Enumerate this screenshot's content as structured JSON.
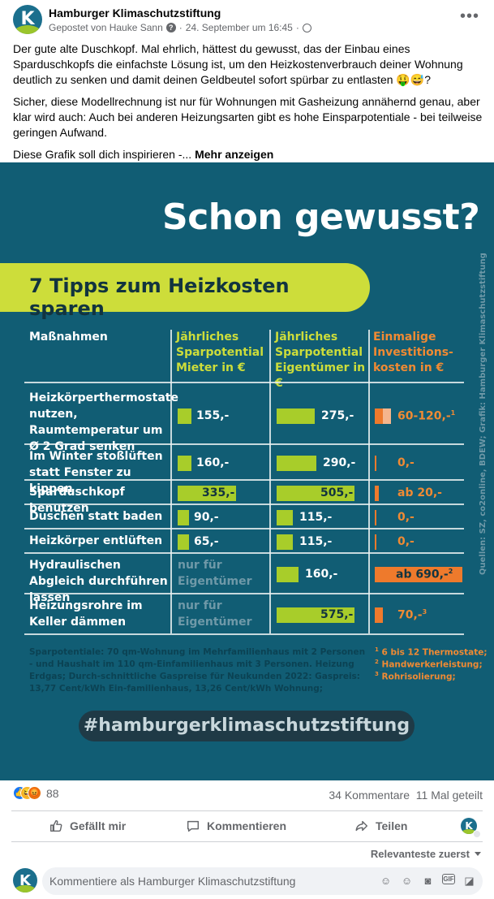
{
  "post": {
    "page_name": "Hamburger Klimaschutzstiftung",
    "posted_by": "Gepostet von Hauke Sann",
    "separator": "·",
    "date": "24. September um 16:45",
    "more_options": "•••",
    "paragraphs": [
      "Der gute alte Duschkopf. Mal ehrlich, hättest du gewusst, das der Einbau eines Sparduschkopfs die einfachste Lösung ist, um den Heizkostenverbrauch deiner Wohnung deutlich zu senken und damit deinen Geldbeutel sofort spürbar zu entlasten 🤑😅?",
      "Sicher, diese Modellrechnung ist nur für Wohnungen mit Gasheizung annähernd genau, aber klar wird auch: Auch bei anderen Heizungsarten gibt es hohe Einsparpotentiale - bei teilweise geringen Aufwand."
    ],
    "last_line": "Diese Grafik soll dich inspirieren -...",
    "see_more": "Mehr anzeigen"
  },
  "graphic": {
    "title": "Schon gewusst?",
    "banner": "7 Tipps zum Heizkosten sparen",
    "headers": {
      "measures": "Maßnahmen",
      "tenant": "Jährliches Sparpotential Mieter in €",
      "owner": "Jährliches Sparpotential Eigentümer in €",
      "invest": "Einmalige Investitions-kosten in €"
    },
    "rows": [
      {
        "label": "Heizkörperthermostate nutzen, Raumtemperatur um Ø 2 Grad senken",
        "tenant": "155,-",
        "tenant_value": 155,
        "owner": "275,-",
        "owner_value": 275,
        "invest": "60-120,-",
        "invest_note": "1"
      },
      {
        "label": "Im Winter stoßlüften statt Fenster zu kippen",
        "tenant": "160,-",
        "tenant_value": 160,
        "owner": "290,-",
        "owner_value": 290,
        "invest": "0,-",
        "invest_note": ""
      },
      {
        "label": "Sparduschkopf benutzen",
        "tenant": "335,-",
        "tenant_value": 335,
        "owner": "505,-",
        "owner_value": 505,
        "invest": "ab 20,-",
        "invest_note": ""
      },
      {
        "label": "Duschen statt baden",
        "tenant": "90,-",
        "tenant_value": 90,
        "owner": "115,-",
        "owner_value": 115,
        "invest": "0,-",
        "invest_note": ""
      },
      {
        "label": "Heizkörper entlüften",
        "tenant": "65,-",
        "tenant_value": 65,
        "owner": "115,-",
        "owner_value": 115,
        "invest": "0,-",
        "invest_note": ""
      },
      {
        "label": "Hydraulischen Abgleich durchführen lassen",
        "tenant": "nur für Eigentümer",
        "tenant_value": null,
        "owner": "160,-",
        "owner_value": 160,
        "invest": "ab 690,-",
        "invest_note": "2"
      },
      {
        "label": "Heizungsrohre im Keller dämmen",
        "tenant": "nur für Eigentümer",
        "tenant_value": null,
        "owner": "575,-",
        "owner_value": 575,
        "invest": "70,-",
        "invest_note": "3"
      }
    ],
    "footnote_left": "Sparpotentiale: 70 qm-Wohnung im Mehrfamilienhaus mit 2 Personen - und Haushalt im 110 qm-Einfamilienhaus mit 3 Personen. Heizung Erdgas; Durch-schnittliche Gaspreise für Neukunden 2022: Gaspreis: 13,77 Cent/kWh Ein-familienhaus, 13,26 Cent/kWh Wohnung;",
    "footnotes_right": [
      {
        "num": "1",
        "text": "6 bis 12 Thermostate;"
      },
      {
        "num": "2",
        "text": "Handwerkerleistung;"
      },
      {
        "num": "3",
        "text": "Rohrisolierung;"
      }
    ],
    "source": "Quellen: SZ, co2online, BDEW; Grafik: Hamburger Klimaschutzstiftung",
    "hashtag": "#hamburgerklimaschutzstiftung",
    "colors": {
      "background": "#115d74",
      "green": "#a8cd2a",
      "orange": "#ee7a2c",
      "banner": "#cddd3a"
    }
  },
  "engagement": {
    "reaction_icons": [
      "like-icon",
      "haha-icon",
      "angry-icon"
    ],
    "reaction_count": "88",
    "comments": "34 Kommentare",
    "shares": "11 Mal geteilt"
  },
  "actions": {
    "like": "Gefällt mir",
    "comment": "Kommentieren",
    "share": "Teilen"
  },
  "comments": {
    "sort": "Relevanteste zuerst",
    "placeholder": "Kommentiere als Hamburger Klimaschutzstiftung"
  }
}
